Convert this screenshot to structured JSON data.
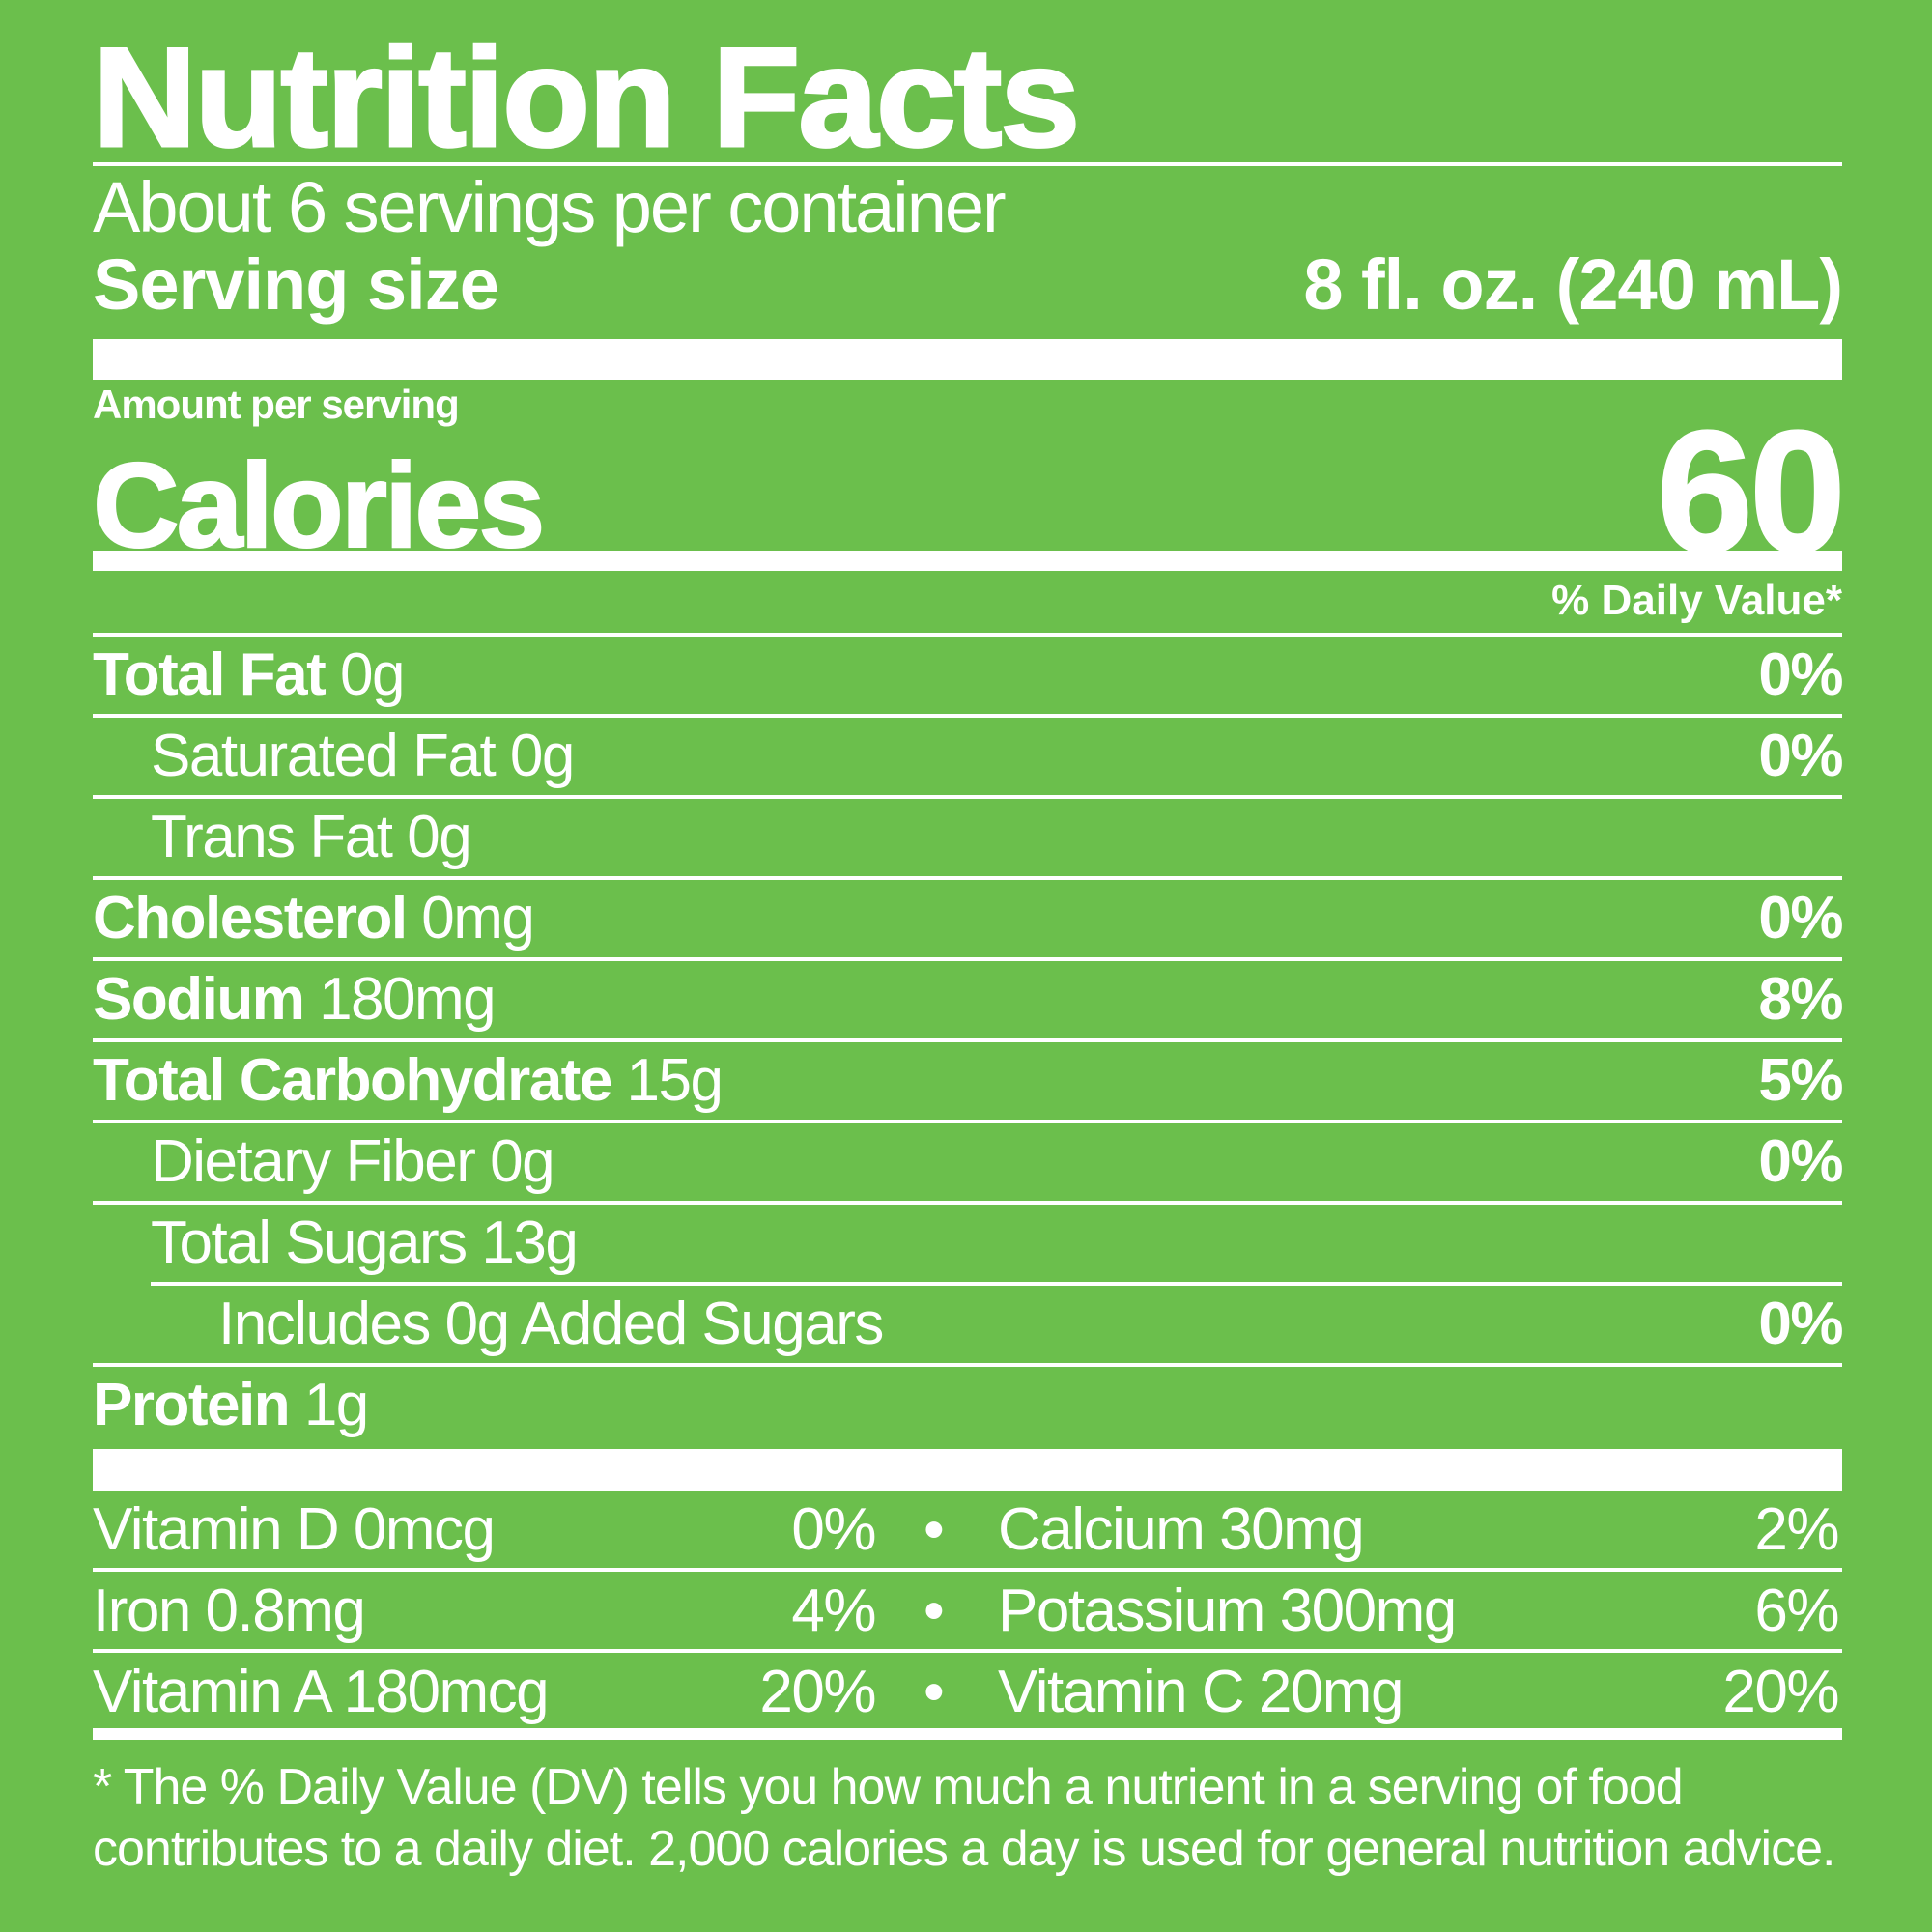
{
  "title": "Nutrition Facts",
  "servings_per_container": "About 6 servings per container",
  "serving_size": {
    "label": "Serving size",
    "value": "8 fl. oz. (240 mL)"
  },
  "amount_per_serving": "Amount per serving",
  "calories": {
    "label": "Calories",
    "value": "60"
  },
  "daily_value_header": "% Daily Value*",
  "nutrients": [
    {
      "name": "Total Fat",
      "amount": "0g",
      "dv": "0%"
    },
    {
      "name": "Saturated Fat",
      "amount": "0g",
      "dv": "0%"
    },
    {
      "name": "Trans Fat",
      "amount": "0g",
      "dv": ""
    },
    {
      "name": "Cholesterol",
      "amount": "0mg",
      "dv": "0%"
    },
    {
      "name": "Sodium",
      "amount": "180mg",
      "dv": "8%"
    },
    {
      "name": "Total Carbohydrate",
      "amount": "15g",
      "dv": "5%"
    },
    {
      "name": "Dietary Fiber",
      "amount": "0g",
      "dv": "0%"
    },
    {
      "name": "Total Sugars",
      "amount": "13g",
      "dv": ""
    },
    {
      "name": "Includes 0g Added Sugars",
      "amount": "",
      "dv": "0%"
    },
    {
      "name": "Protein",
      "amount": "1g",
      "dv": ""
    }
  ],
  "vitamins": [
    {
      "left": "Vitamin D 0mcg",
      "left_dv": "0%",
      "bullet": "•",
      "right": "Calcium 30mg",
      "right_dv": "2%"
    },
    {
      "left": "Iron 0.8mg",
      "left_dv": "4%",
      "bullet": "•",
      "right": "Potassium 300mg",
      "right_dv": "6%"
    },
    {
      "left": "Vitamin A 180mcg",
      "left_dv": "20%",
      "bullet": "•",
      "right": "Vitamin C 20mg",
      "right_dv": "20%"
    }
  ],
  "footnote": [
    "* The % Daily Value (DV) tells you how much a nutrient in a serving of food",
    "contributes to a daily diet. 2,000 calories a day is used for general nutrition advice."
  ],
  "colors": {
    "background": "#6bbf4c",
    "text": "#ffffff"
  }
}
